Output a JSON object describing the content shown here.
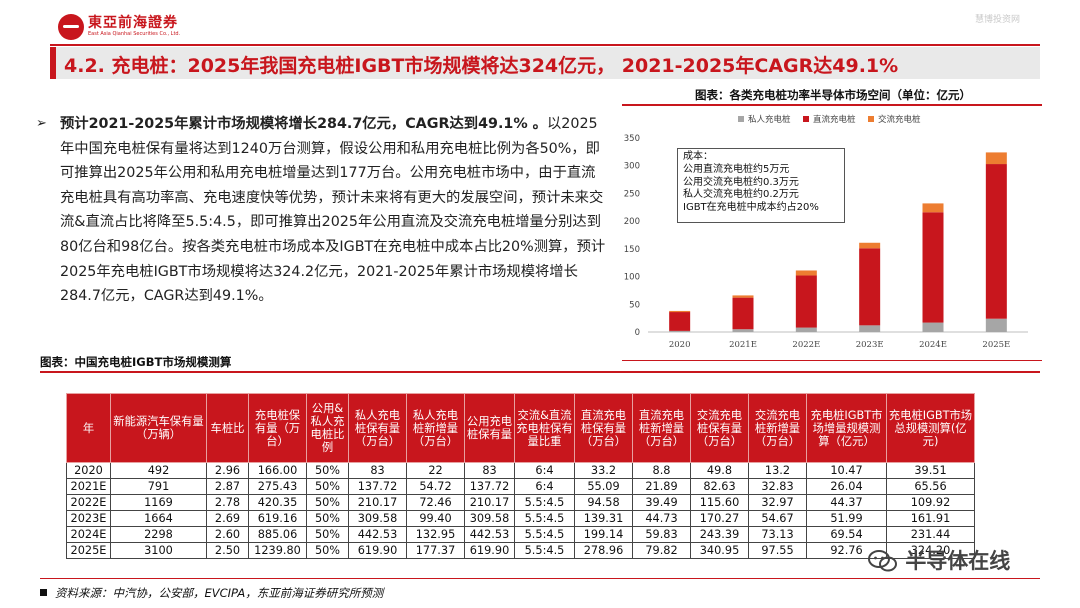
{
  "header": {
    "company_cn": "東亞前海證券",
    "company_en": "East Asia Qianhai Securities Co., Ltd.",
    "top_watermark": "慧博投资网"
  },
  "page_title": "4.2. 充电桩：2025年我国充电桩IGBT市场规模将达324亿元， 2021-2025年CAGR达49.1%",
  "bullet": {
    "lead": "预计2021-2025年累计市场规模将增长284.7亿元，CAGR达到49.1% 。",
    "body": "以2025年中国充电桩保有量将达到1240万台测算，假设公用和私用充电桩比例为各50%，即可推算出2025年公用和私用充电桩增量达到177万台。公用充电桩市场中，由于直流充电桩具有高功率高、充电速度快等优势，预计未来将有更大的发展空间，预计未来交流&直流占比将降至5.5:4.5，即可推算出2025年公用直流及交流充电桩增量分别达到80亿台和98亿台。按各类充电桩市场成本及IGBT在充电桩中成本占比20%测算，预计2025年充电桩IGBT市场规模将达324.2亿元，2021-2025年累计市场规模将增长284.7亿元，CAGR达到49.1%。"
  },
  "chart_title": "图表：各类充电桩功率半导体市场空间（单位：亿元）",
  "cost_box": {
    "lines": [
      "成本：",
      "公用直流充电桩约5万元",
      "公用交流充电桩约0.3万元",
      "私人交流充电桩约0.2万元",
      "IGBT在充电桩中成本约占20%"
    ]
  },
  "chart_data": {
    "type": "bar",
    "stacked": true,
    "categories": [
      "2020",
      "2021E",
      "2022E",
      "2023E",
      "2024E",
      "2025E"
    ],
    "series": [
      {
        "name": "私人充电桩",
        "color": "#a6a6a6",
        "values": [
          2,
          5,
          8,
          12,
          17,
          24
        ]
      },
      {
        "name": "直流充电桩",
        "color": "#c8161d",
        "values": [
          34,
          57,
          94,
          139,
          199,
          279
        ]
      },
      {
        "name": "交流充电桩",
        "color": "#ed7d31",
        "values": [
          2,
          4,
          9,
          10,
          16,
          21
        ]
      }
    ],
    "ylim": [
      0,
      350
    ],
    "yticks": [
      "0",
      "50",
      "100",
      "150",
      "200",
      "250",
      "300",
      "350"
    ],
    "legend_position": "top",
    "grid": false
  },
  "table": {
    "caption": "图表：中国充电桩IGBT市场规模测算",
    "headers": [
      "年",
      "新能源汽车保有量（万辆）",
      "车桩比",
      "充电桩保有量（万台）",
      "公用&私人充电桩比例",
      "私人充电桩保有量（万台）",
      "私人充电桩新增量（万台）",
      "公用充电桩保有量",
      "交流&直流充电桩保有量比重",
      "直流充电桩保有量（万台）",
      "直流充电桩新增量（万台）",
      "交流充电桩保有量（万台）",
      "交流充电桩新增量（万台）",
      "充电桩IGBT市场增量规模测算（亿元）",
      "充电桩IGBT市场总规模测算(亿元)"
    ],
    "rows": [
      [
        "2020",
        "492",
        "2.96",
        "166.00",
        "50%",
        "83",
        "22",
        "83",
        "6:4",
        "33.2",
        "8.8",
        "49.8",
        "13.2",
        "10.47",
        "39.51"
      ],
      [
        "2021E",
        "791",
        "2.87",
        "275.43",
        "50%",
        "137.72",
        "54.72",
        "137.72",
        "6:4",
        "55.09",
        "21.89",
        "82.63",
        "32.83",
        "26.04",
        "65.56"
      ],
      [
        "2022E",
        "1169",
        "2.78",
        "420.35",
        "50%",
        "210.17",
        "72.46",
        "210.17",
        "5.5:4.5",
        "94.58",
        "39.49",
        "115.60",
        "32.97",
        "44.37",
        "109.92"
      ],
      [
        "2023E",
        "1664",
        "2.69",
        "619.16",
        "50%",
        "309.58",
        "99.40",
        "309.58",
        "5.5:4.5",
        "139.31",
        "44.73",
        "170.27",
        "54.67",
        "51.99",
        "161.91"
      ],
      [
        "2024E",
        "2298",
        "2.60",
        "885.06",
        "50%",
        "442.53",
        "132.95",
        "442.53",
        "5.5:4.5",
        "199.14",
        "59.83",
        "243.39",
        "73.13",
        "69.54",
        "231.44"
      ],
      [
        "2025E",
        "3100",
        "2.50",
        "1239.80",
        "50%",
        "619.90",
        "177.37",
        "619.90",
        "5.5:4.5",
        "278.96",
        "79.82",
        "340.95",
        "97.55",
        "92.76",
        "324.20"
      ]
    ]
  },
  "source": "资料来源：中汽协，公安部，EVCIPA，东亚前海证券研究所预测",
  "brand_watermark": "半导体在线"
}
